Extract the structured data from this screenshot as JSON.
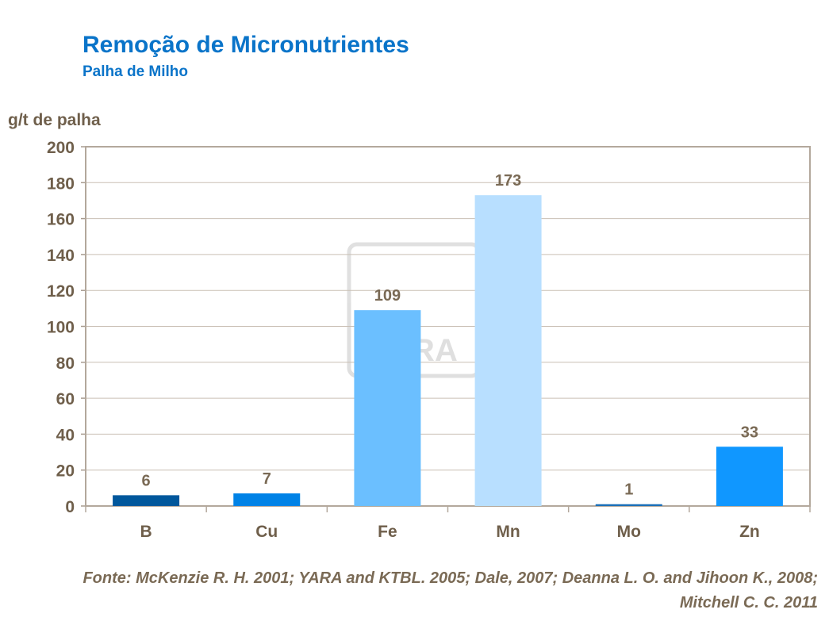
{
  "chart_data": {
    "type": "bar",
    "title": "Remoção de Micronutrientes",
    "subtitle": "Palha de Milho",
    "ylabel": "g/t de palha",
    "xlabel": "",
    "categories": [
      "B",
      "Cu",
      "Fe",
      "Mn",
      "Mo",
      "Zn"
    ],
    "values": [
      6,
      7,
      109,
      173,
      1,
      33
    ],
    "data_labels": [
      "6",
      "7",
      "109",
      "173",
      "1",
      "33"
    ],
    "colors": [
      "#00579c",
      "#0082e6",
      "#6bbfff",
      "#b8dfff",
      "#1a6fb8",
      "#1097ff"
    ],
    "ylim": [
      0,
      200
    ],
    "yticks": [
      "0",
      "20",
      "40",
      "60",
      "80",
      "100",
      "120",
      "140",
      "160",
      "180",
      "200"
    ],
    "grid": true,
    "legend": "none",
    "watermark": "YARA",
    "source": "Fonte: McKenzie R. H. 2001; YARA and KTBL. 2005; Dale, 2007; Deanna L. O. and Jihoon K.,  2008; Mitchell C. C. 2011"
  }
}
